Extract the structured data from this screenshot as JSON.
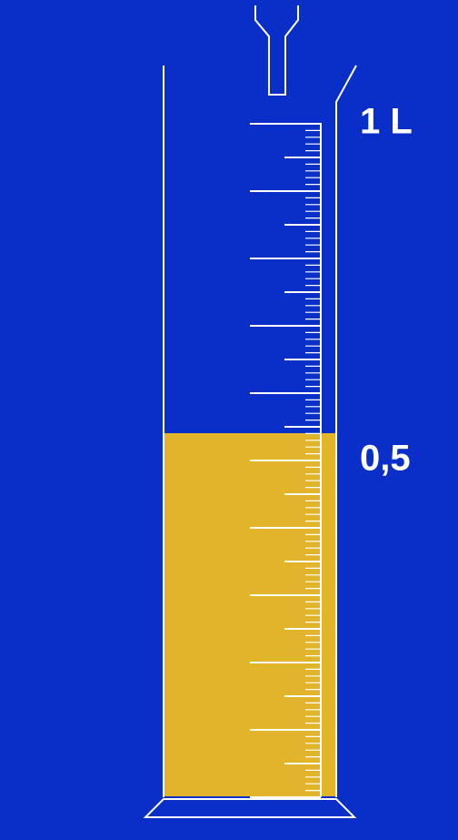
{
  "labels": {
    "top": "1 L",
    "middle": "0,5"
  }
}
